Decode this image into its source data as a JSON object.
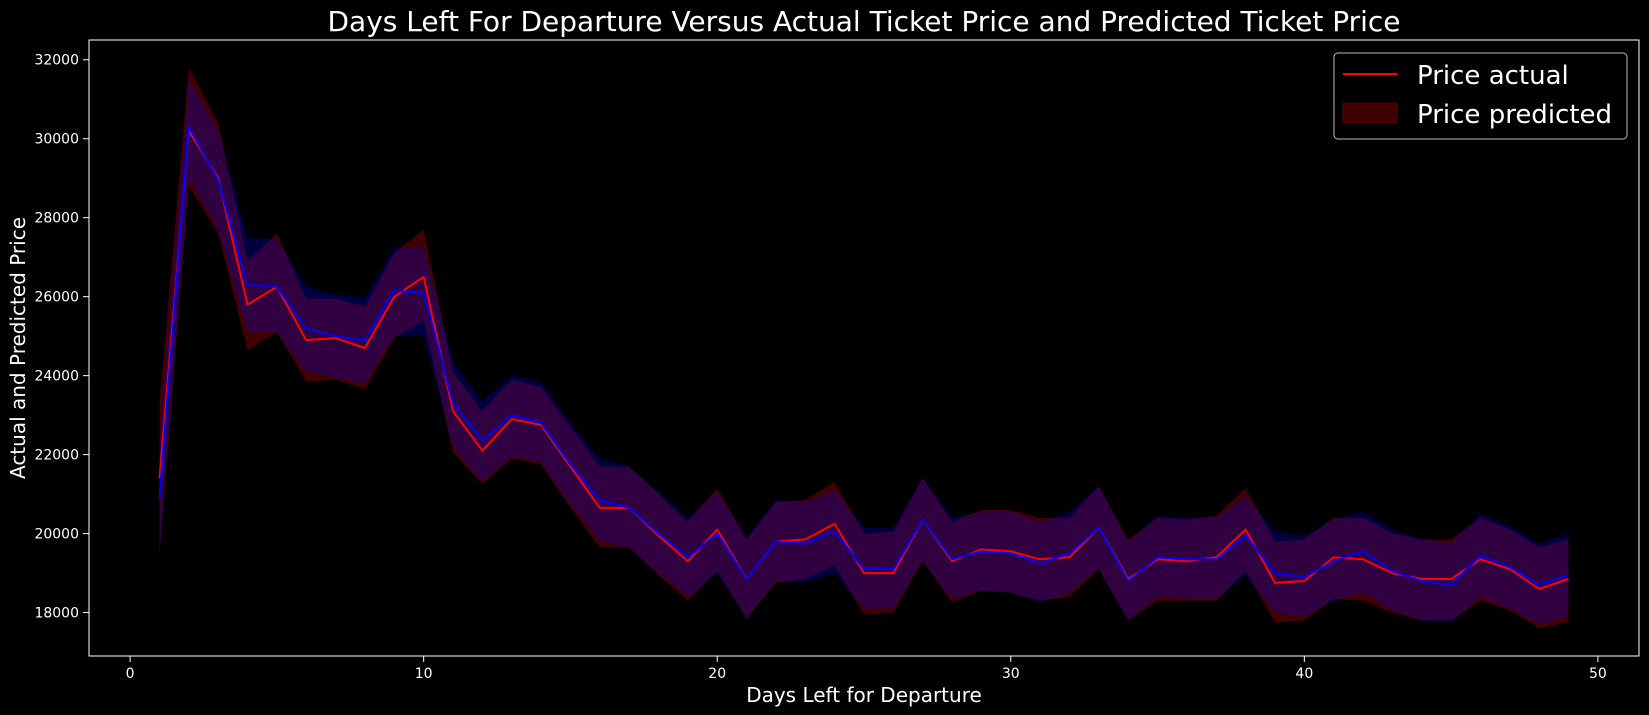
{
  "chart_data": {
    "type": "line",
    "title": "Days Left For Departure Versus Actual Ticket Price and Predicted Ticket Price",
    "xlabel": "Days Left for Departure",
    "ylabel": "Actual and Predicted Price",
    "xlim": [
      -1.4,
      51.4
    ],
    "ylim": [
      16900,
      32500
    ],
    "xticks": [
      0,
      10,
      20,
      30,
      40,
      50
    ],
    "yticks": [
      18000,
      20000,
      22000,
      24000,
      26000,
      28000,
      30000,
      32000
    ],
    "grid": false,
    "legend_position": "top-right",
    "legend": [
      {
        "label": "Price actual",
        "style": "line",
        "color": "#ff0000"
      },
      {
        "label": "Price predicted",
        "style": "patch",
        "color": "#ff0000"
      }
    ],
    "x": [
      1,
      2,
      3,
      4,
      5,
      6,
      7,
      8,
      9,
      10,
      11,
      12,
      13,
      14,
      15,
      16,
      17,
      18,
      19,
      20,
      21,
      22,
      23,
      24,
      25,
      26,
      27,
      28,
      29,
      30,
      31,
      32,
      33,
      34,
      35,
      36,
      37,
      38,
      39,
      40,
      41,
      42,
      43,
      44,
      45,
      46,
      47,
      48,
      49
    ],
    "series": [
      {
        "name": "Price actual",
        "color": "#ff0000",
        "values": [
          21400,
          30200,
          29000,
          25800,
          26250,
          24900,
          24950,
          24700,
          26000,
          26500,
          23100,
          22100,
          22900,
          22750,
          21700,
          20650,
          20650,
          19950,
          19300,
          20100,
          18850,
          19800,
          19850,
          20250,
          19000,
          19000,
          20350,
          19300,
          19600,
          19550,
          19350,
          19400,
          20150,
          18850,
          19350,
          19300,
          19400,
          20100,
          18750,
          18800,
          19400,
          19350,
          19000,
          18850,
          18850,
          19350,
          19100,
          18600,
          18850
        ],
        "band_low": [
          19500,
          28800,
          27600,
          24650,
          25100,
          23850,
          23900,
          23650,
          24950,
          25400,
          22050,
          21250,
          21900,
          21750,
          20650,
          19650,
          19650,
          18950,
          18300,
          19050,
          17850,
          18750,
          18850,
          19200,
          17950,
          18000,
          19300,
          18250,
          18550,
          18500,
          18300,
          18400,
          19100,
          17800,
          18300,
          18300,
          18300,
          19050,
          17750,
          17800,
          18350,
          18300,
          18000,
          17800,
          17800,
          18300,
          18050,
          17600,
          17750
        ],
        "band_high": [
          23300,
          31800,
          30400,
          26900,
          27600,
          25950,
          25950,
          25750,
          27100,
          27700,
          24100,
          23100,
          23900,
          23700,
          22700,
          21700,
          21700,
          21000,
          20300,
          21150,
          19850,
          20800,
          20850,
          21300,
          20000,
          20050,
          21400,
          20300,
          20600,
          20600,
          20400,
          20400,
          21200,
          19850,
          20400,
          20350,
          20450,
          21150,
          19800,
          19850,
          20400,
          20400,
          20000,
          19850,
          19850,
          20400,
          20100,
          19650,
          19850
        ]
      },
      {
        "color": "#0000ff",
        "values": [
          20900,
          30300,
          28950,
          26300,
          26250,
          25200,
          25000,
          24900,
          26150,
          26100,
          23300,
          22350,
          23000,
          22800,
          21750,
          20850,
          20650,
          20000,
          19400,
          20000,
          18850,
          19800,
          19750,
          20050,
          19100,
          19100,
          20350,
          19350,
          19550,
          19500,
          19250,
          19500,
          20150,
          18800,
          19400,
          19350,
          19350,
          19950,
          19000,
          18900,
          19300,
          19550,
          19050,
          18800,
          18700,
          19450,
          19150,
          18700,
          18950
        ],
        "band_low": [
          19500,
          29000,
          27700,
          25100,
          25100,
          24100,
          23950,
          23800,
          25000,
          25000,
          22200,
          21300,
          21950,
          21800,
          20750,
          19800,
          19650,
          19000,
          18400,
          19000,
          17850,
          18800,
          18750,
          19000,
          18100,
          18100,
          19300,
          18350,
          18550,
          18500,
          18250,
          18500,
          19100,
          17800,
          18400,
          18350,
          18350,
          18950,
          18000,
          17900,
          18300,
          18500,
          18050,
          17800,
          17750,
          18400,
          18100,
          17700,
          17900
        ],
        "band_high": [
          22300,
          31500,
          30200,
          27500,
          27450,
          26250,
          26050,
          25950,
          27250,
          27250,
          24350,
          23350,
          24000,
          23850,
          22800,
          21900,
          21700,
          21050,
          20400,
          21050,
          19900,
          20850,
          20800,
          21100,
          20150,
          20150,
          21400,
          20400,
          20550,
          20550,
          20300,
          20550,
          21200,
          19800,
          20450,
          20400,
          20400,
          20950,
          20050,
          19950,
          20350,
          20550,
          20100,
          19850,
          19750,
          20500,
          20200,
          19750,
          20000
        ]
      }
    ]
  }
}
